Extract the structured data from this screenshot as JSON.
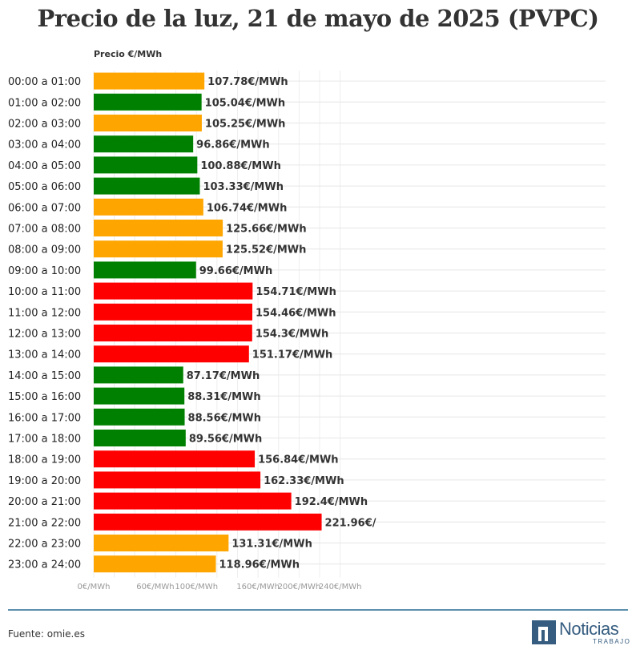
{
  "title": "Precio de la luz, 21 de mayo de 2025 (PVPC)",
  "source": "Fuente: omie.es",
  "logo": {
    "word": "Noticias",
    "sub": "TRABAJO"
  },
  "colors": {
    "green": "#008000",
    "orange": "#FFA500",
    "red": "#FF0000"
  },
  "chart_data": {
    "type": "bar",
    "orientation": "horizontal",
    "title": "Precio de la luz, 21 de mayo de 2025 (PVPC)",
    "ylabel": "Precio €/MWh",
    "xlim": [
      0,
      250
    ],
    "grid": true,
    "categories": [
      "00:00 a 01:00",
      "01:00 a 02:00",
      "02:00 a 03:00",
      "03:00 a 04:00",
      "04:00 a 05:00",
      "05:00 a 06:00",
      "06:00 a 07:00",
      "07:00 a 08:00",
      "08:00 a 09:00",
      "09:00 a 10:00",
      "10:00 a 11:00",
      "11:00 a 12:00",
      "12:00 a 13:00",
      "13:00 a 14:00",
      "14:00 a 15:00",
      "15:00 a 16:00",
      "16:00 a 17:00",
      "17:00 a 18:00",
      "18:00 a 19:00",
      "19:00 a 20:00",
      "20:00 a 21:00",
      "21:00 a 22:00",
      "22:00 a 23:00",
      "23:00 a 24:00"
    ],
    "values": [
      107.78,
      105.04,
      105.25,
      96.86,
      100.88,
      103.33,
      106.74,
      125.66,
      125.52,
      99.66,
      154.71,
      154.46,
      154.3,
      151.17,
      87.17,
      88.31,
      88.56,
      89.56,
      156.84,
      162.33,
      192.4,
      221.96,
      131.31,
      118.96
    ],
    "value_labels": [
      "107.78€/MWh",
      "105.04€/MWh",
      "105.25€/MWh",
      "96.86€/MWh",
      "100.88€/MWh",
      "103.33€/MWh",
      "106.74€/MWh",
      "125.66€/MWh",
      "125.52€/MWh",
      "99.66€/MWh",
      "154.71€/MWh",
      "154.46€/MWh",
      "154.3€/MWh",
      "151.17€/MWh",
      "87.17€/MWh",
      "88.31€/MWh",
      "88.56€/MWh",
      "89.56€/MWh",
      "156.84€/MWh",
      "162.33€/MWh",
      "192.4€/MWh",
      "221.96€/",
      "131.31€/MWh",
      "118.96€/MWh"
    ],
    "bar_colors": [
      "orange",
      "green",
      "orange",
      "green",
      "green",
      "green",
      "orange",
      "orange",
      "orange",
      "green",
      "red",
      "red",
      "red",
      "red",
      "green",
      "green",
      "green",
      "green",
      "red",
      "red",
      "red",
      "red",
      "orange",
      "orange"
    ],
    "x_ticks": [
      {
        "value": 0,
        "label": "0€/MWh"
      },
      {
        "value": 60,
        "label": "60€/MWh"
      },
      {
        "value": 100,
        "label": "100€/MWh"
      },
      {
        "value": 160,
        "label": "160€/MWh"
      },
      {
        "value": 200,
        "label": "200€/MWh"
      },
      {
        "value": 240,
        "label": "240€/MWh"
      }
    ],
    "x_grid_values": [
      0,
      20,
      40,
      60,
      80,
      100,
      120,
      140,
      160,
      180,
      200,
      220,
      240
    ]
  }
}
